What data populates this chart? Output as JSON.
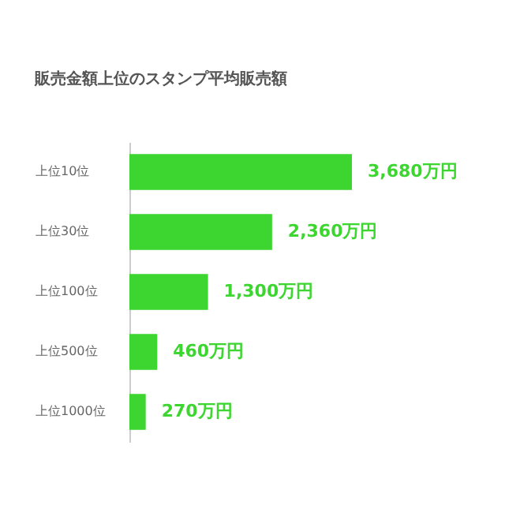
{
  "chart_data": {
    "type": "bar",
    "orientation": "horizontal",
    "title": "販売金額上位のスタンプ平均販売額",
    "categories": [
      "上位10位",
      "上位30位",
      "上位100位",
      "上位500位",
      "上位1000位"
    ],
    "values": [
      3680,
      2360,
      1300,
      460,
      270
    ],
    "value_labels": [
      "3,680万円",
      "2,360万円",
      "1,300万円",
      "460万円",
      "270万円"
    ],
    "color": "#3dd631",
    "grid": false
  }
}
